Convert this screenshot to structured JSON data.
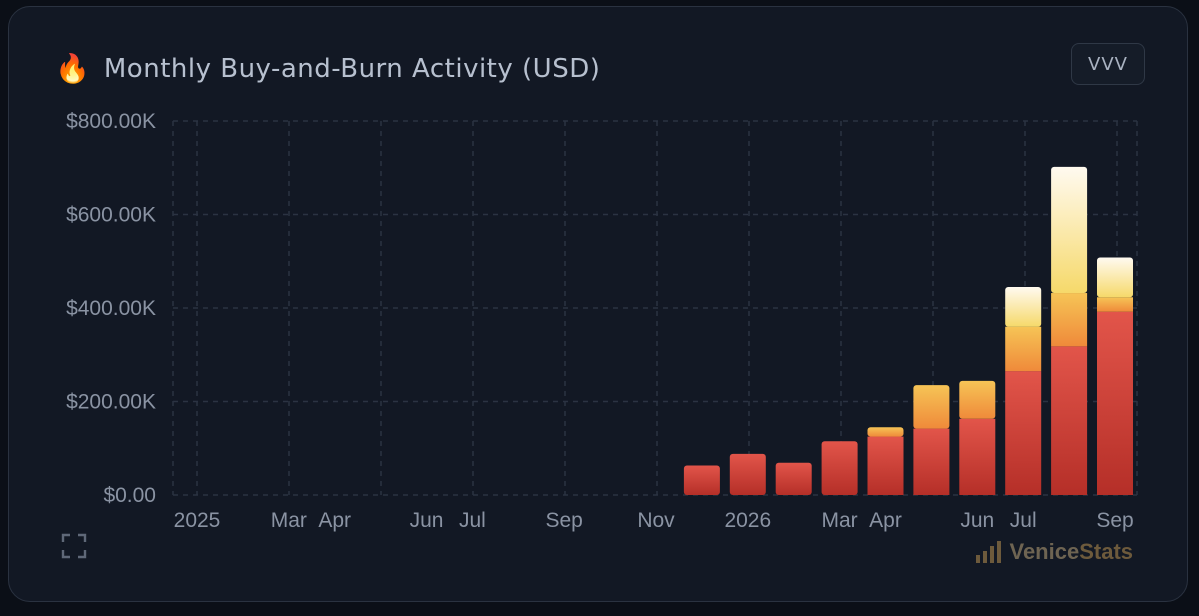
{
  "header": {
    "icon": "fire-icon",
    "title": "Monthly Buy-and-Burn Activity (USD)",
    "token_button": "VVV"
  },
  "footer": {
    "expand_icon": "expand-icon",
    "brand_icon": "bar-signal-icon",
    "brand_name_part1": "Venice",
    "brand_name_part2": "Stats"
  },
  "colors": {
    "background": "#121824",
    "grid": "#2b3342",
    "segment_base": "#d9443a",
    "segment_mid": "#f0a040",
    "segment_top": "#fde9a8"
  },
  "chart_data": {
    "type": "bar",
    "stacked": true,
    "title": "Monthly Buy-and-Burn Activity (USD)",
    "x_tick_labels": [
      "2025",
      "Mar",
      "Apr",
      "Jun",
      "Jul",
      "Sep",
      "Nov",
      "2026",
      "Mar",
      "Apr",
      "Jun",
      "Jul",
      "Sep"
    ],
    "y_tick_labels": [
      "$0.00",
      "$200.00K",
      "$400.00K",
      "$600.00K",
      "$800.00K"
    ],
    "ylim": [
      0,
      800000
    ],
    "grid": true,
    "categories": [
      "2025-12",
      "2026-01",
      "2026-02",
      "2026-03",
      "2026-04",
      "2026-05",
      "2026-06",
      "2026-07",
      "2026-08",
      "2026-09"
    ],
    "series": [
      {
        "values": [
          63000,
          88000,
          69000,
          115000,
          125000,
          142000,
          163000,
          265000,
          318000,
          392000
        ]
      },
      {
        "values": [
          0,
          0,
          0,
          0,
          20000,
          93000,
          81000,
          95000,
          114000,
          31000
        ]
      },
      {
        "values": [
          0,
          0,
          0,
          0,
          0,
          0,
          0,
          85000,
          270000,
          85000
        ]
      }
    ],
    "totals": [
      63000,
      88000,
      69000,
      115000,
      145000,
      235000,
      244000,
      445000,
      702000,
      508000
    ]
  }
}
